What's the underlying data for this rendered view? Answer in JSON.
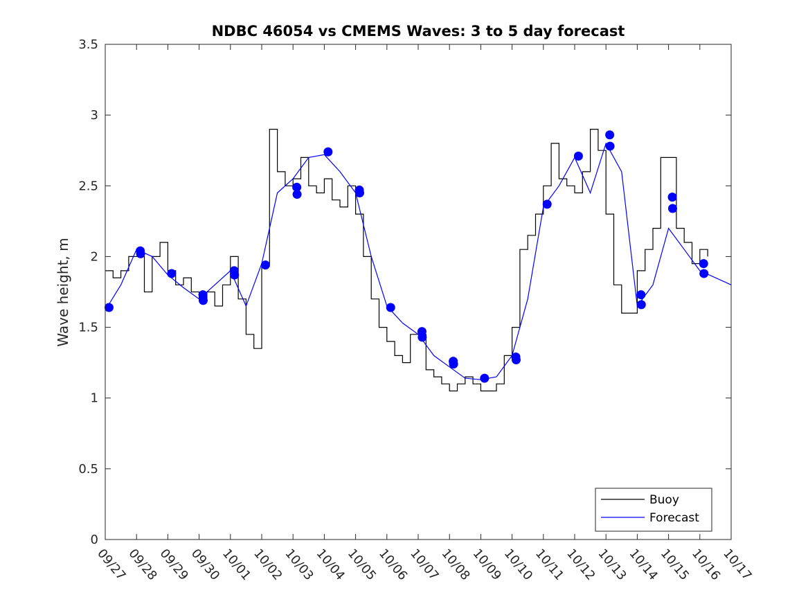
{
  "chart_data": {
    "type": "line",
    "title": "NDBC 46054 vs CMEMS Waves: 3 to 5 day forecast",
    "xlabel": "",
    "ylabel": "Wave height, m",
    "xlim_days": [
      0,
      20
    ],
    "ylim": [
      0,
      3.5
    ],
    "yticks": [
      0,
      0.5,
      1,
      1.5,
      2,
      2.5,
      3,
      3.5
    ],
    "ytick_labels": [
      "0",
      "0.5",
      "1",
      "1.5",
      "2",
      "2.5",
      "3",
      "3.5"
    ],
    "xtick_labels": [
      "09/27",
      "09/28",
      "09/29",
      "09/30",
      "10/01",
      "10/02",
      "10/03",
      "10/04",
      "10/05",
      "10/06",
      "10/07",
      "10/08",
      "10/09",
      "10/10",
      "10/11",
      "10/12",
      "10/13",
      "10/14",
      "10/15",
      "10/16",
      "10/17"
    ],
    "grid": false,
    "legend_position": "bottom-right",
    "colors": {
      "buoy": "#000000",
      "forecast": "#0000ff"
    },
    "series": [
      {
        "name": "Buoy",
        "x": [
          0,
          0.25,
          0.5,
          0.75,
          1.0,
          1.25,
          1.5,
          1.75,
          2.0,
          2.25,
          2.5,
          2.75,
          3.0,
          3.25,
          3.5,
          3.75,
          4.0,
          4.25,
          4.5,
          4.75,
          5.0,
          5.25,
          5.5,
          5.75,
          6.0,
          6.25,
          6.5,
          6.75,
          7.0,
          7.25,
          7.5,
          7.75,
          8.0,
          8.25,
          8.5,
          8.75,
          9.0,
          9.25,
          9.5,
          9.75,
          10.0,
          10.25,
          10.5,
          10.75,
          11.0,
          11.25,
          11.5,
          11.75,
          12.0,
          12.25,
          12.5,
          12.75,
          13.0,
          13.25,
          13.5,
          13.75,
          14.0,
          14.25,
          14.5,
          14.75,
          15.0,
          15.25,
          15.5,
          15.75,
          16.0,
          16.25,
          16.5,
          16.75,
          17.0,
          17.25,
          17.5,
          17.75,
          18.0,
          18.25,
          18.5,
          18.75,
          19.0,
          19.25
        ],
        "values": [
          1.9,
          1.85,
          1.9,
          2.0,
          2.0,
          1.75,
          2.0,
          2.1,
          1.9,
          1.8,
          1.85,
          1.75,
          1.7,
          1.75,
          1.65,
          1.8,
          2.0,
          1.7,
          1.45,
          1.35,
          1.95,
          2.9,
          2.6,
          2.5,
          2.55,
          2.7,
          2.5,
          2.45,
          2.55,
          2.4,
          2.35,
          2.5,
          2.3,
          2.0,
          1.7,
          1.5,
          1.4,
          1.3,
          1.25,
          1.45,
          1.45,
          1.2,
          1.15,
          1.1,
          1.05,
          1.1,
          1.15,
          1.1,
          1.05,
          1.05,
          1.1,
          1.3,
          1.5,
          2.05,
          2.15,
          2.3,
          2.5,
          2.8,
          2.55,
          2.5,
          2.45,
          2.6,
          2.9,
          2.75,
          2.3,
          1.8,
          1.6,
          1.6,
          1.9,
          2.05,
          2.2,
          2.7,
          2.7,
          2.2,
          2.1,
          1.95,
          2.05,
          2.0
        ]
      },
      {
        "name": "Forecast",
        "x": [
          0,
          0.5,
          1.0,
          1.5,
          2.0,
          2.5,
          3.0,
          3.5,
          4.0,
          4.5,
          5.0,
          5.5,
          6.0,
          6.5,
          7.0,
          7.5,
          8.0,
          8.5,
          9.0,
          9.5,
          10.0,
          10.5,
          11.0,
          11.5,
          12.0,
          12.5,
          13.0,
          13.5,
          14.0,
          14.5,
          15.0,
          15.5,
          16.0,
          16.5,
          17.0,
          17.5,
          18.0,
          18.5,
          19.0,
          19.5,
          20.0
        ],
        "values": [
          1.62,
          1.8,
          2.05,
          2.0,
          1.87,
          1.78,
          1.7,
          1.8,
          1.9,
          1.65,
          1.95,
          2.45,
          2.55,
          2.7,
          2.72,
          2.6,
          2.45,
          2.0,
          1.65,
          1.53,
          1.45,
          1.3,
          1.22,
          1.14,
          1.13,
          1.15,
          1.3,
          1.7,
          2.35,
          2.5,
          2.7,
          2.45,
          2.8,
          2.6,
          1.65,
          1.8,
          2.2,
          2.05,
          1.9,
          1.85,
          1.8
        ]
      }
    ],
    "markers": {
      "x": [
        0.12,
        1.12,
        1.13,
        2.12,
        3.12,
        3.13,
        4.12,
        4.13,
        5.12,
        6.12,
        6.13,
        7.12,
        8.12,
        8.13,
        9.12,
        10.12,
        10.13,
        11.12,
        11.13,
        12.12,
        13.12,
        13.13,
        14.12,
        15.12,
        16.12,
        16.13,
        17.12,
        17.13,
        18.12,
        18.13,
        19.12,
        19.13
      ],
      "values": [
        1.64,
        2.04,
        2.02,
        1.88,
        1.73,
        1.69,
        1.9,
        1.87,
        1.94,
        2.49,
        2.44,
        2.74,
        2.47,
        2.45,
        1.64,
        1.47,
        1.43,
        1.26,
        1.24,
        1.14,
        1.29,
        1.27,
        2.37,
        2.71,
        2.86,
        2.78,
        1.73,
        1.66,
        2.42,
        2.34,
        1.95,
        1.88
      ]
    }
  }
}
